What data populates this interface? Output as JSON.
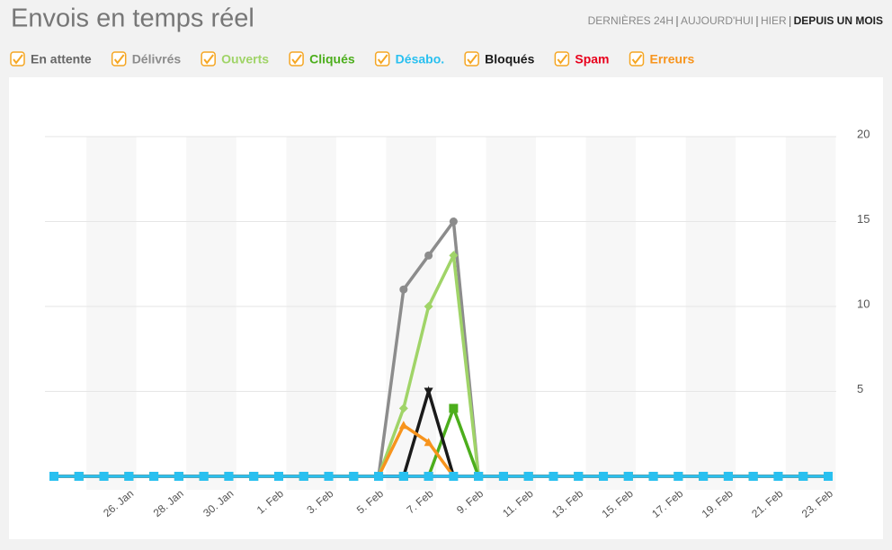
{
  "header": {
    "title": "Envois en temps réel",
    "periods": [
      "DERNIÈRES 24H",
      "AUJOURD'HUI",
      "HIER",
      "DEPUIS UN MOIS"
    ]
  },
  "chart_data": {
    "type": "line",
    "categories": [
      null,
      null,
      null,
      "26. Jan",
      null,
      "28. Jan",
      null,
      "30. Jan",
      null,
      "1. Feb",
      null,
      "3. Feb",
      null,
      "5. Feb",
      null,
      "7. Feb",
      null,
      "9. Feb",
      null,
      "11. Feb",
      null,
      "13. Feb",
      null,
      "15. Feb",
      null,
      "17. Feb",
      null,
      "19. Feb",
      null,
      "21. Feb",
      null,
      "23. Feb"
    ],
    "series": [
      {
        "name": "En attente",
        "color": "#666666",
        "values": [
          0,
          0,
          0,
          0,
          0,
          0,
          0,
          0,
          0,
          0,
          0,
          0,
          0,
          0,
          0,
          0,
          0,
          0,
          0,
          0,
          0,
          0,
          0,
          0,
          0,
          0,
          0,
          0,
          0,
          0,
          0,
          0
        ]
      },
      {
        "name": "Délivrés",
        "color": "#8c8c8c",
        "values": [
          0,
          0,
          0,
          0,
          0,
          0,
          0,
          0,
          0,
          0,
          0,
          0,
          0,
          0,
          11,
          13,
          15,
          0,
          0,
          0,
          0,
          0,
          0,
          0,
          0,
          0,
          0,
          0,
          0,
          0,
          0,
          0
        ]
      },
      {
        "name": "Ouverts",
        "color": "#a0d468",
        "values": [
          0,
          0,
          0,
          0,
          0,
          0,
          0,
          0,
          0,
          0,
          0,
          0,
          0,
          0,
          4,
          10,
          13,
          0,
          0,
          0,
          0,
          0,
          0,
          0,
          0,
          0,
          0,
          0,
          0,
          0,
          0,
          0
        ]
      },
      {
        "name": "Cliqués",
        "color": "#4cae1c",
        "values": [
          0,
          0,
          0,
          0,
          0,
          0,
          0,
          0,
          0,
          0,
          0,
          0,
          0,
          0,
          0,
          0,
          4,
          0,
          0,
          0,
          0,
          0,
          0,
          0,
          0,
          0,
          0,
          0,
          0,
          0,
          0,
          0
        ]
      },
      {
        "name": "Désabo.",
        "color": "#29c0f0",
        "values": [
          0,
          0,
          0,
          0,
          0,
          0,
          0,
          0,
          0,
          0,
          0,
          0,
          0,
          0,
          0,
          0,
          0,
          0,
          0,
          0,
          0,
          0,
          0,
          0,
          0,
          0,
          0,
          0,
          0,
          0,
          0,
          0
        ]
      },
      {
        "name": "Bloqués",
        "color": "#1a1a1a",
        "values": [
          0,
          0,
          0,
          0,
          0,
          0,
          0,
          0,
          0,
          0,
          0,
          0,
          0,
          0,
          0,
          5,
          0,
          0,
          0,
          0,
          0,
          0,
          0,
          0,
          0,
          0,
          0,
          0,
          0,
          0,
          0,
          0
        ]
      },
      {
        "name": "Spam",
        "color": "#e8001c",
        "values": [
          0,
          0,
          0,
          0,
          0,
          0,
          0,
          0,
          0,
          0,
          0,
          0,
          0,
          0,
          0,
          0,
          0,
          0,
          0,
          0,
          0,
          0,
          0,
          0,
          0,
          0,
          0,
          0,
          0,
          0,
          0,
          0
        ]
      },
      {
        "name": "Erreurs",
        "color": "#f7941d",
        "values": [
          0,
          0,
          0,
          0,
          0,
          0,
          0,
          0,
          0,
          0,
          0,
          0,
          0,
          0,
          3,
          2,
          0,
          0,
          0,
          0,
          0,
          0,
          0,
          0,
          0,
          0,
          0,
          0,
          0,
          0,
          0,
          0
        ]
      }
    ],
    "ylim": [
      0,
      20
    ],
    "yticks": [
      5,
      10,
      15,
      20
    ],
    "grid": true
  }
}
